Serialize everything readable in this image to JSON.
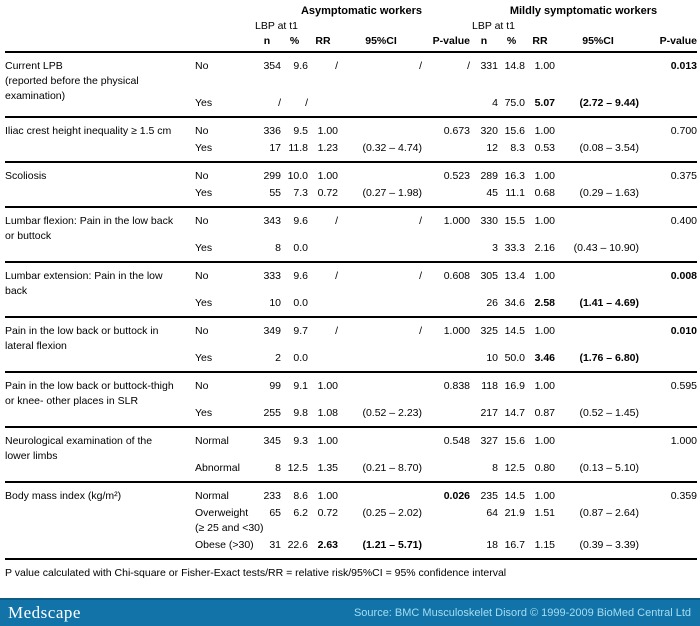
{
  "header": {
    "groups": [
      {
        "title": "Asymptomatic workers",
        "subtitle": "LBP at t1"
      },
      {
        "title": "Mildly symptomatic workers",
        "subtitle": "LBP at t1"
      }
    ],
    "columns": [
      "n",
      "%",
      "RR",
      "95%CI",
      "P-value"
    ]
  },
  "rows": [
    {
      "trait": "Current LPB\n(reported before the physical\nexamination)",
      "categories": [
        {
          "label": "No",
          "cells": [
            "354",
            "9.6",
            "/",
            "/",
            "/",
            "331",
            "14.8",
            "1.00",
            "",
            "0.013"
          ],
          "bold": [
            9
          ]
        },
        {
          "label": "Yes",
          "cells": [
            "/",
            "/",
            "",
            "",
            "",
            "4",
            "75.0",
            "5.07",
            "(2.72 – 9.44)",
            ""
          ],
          "bold": [
            7,
            8
          ]
        }
      ]
    },
    {
      "trait": "Iliac crest height inequality ≥ 1.5 cm",
      "categories": [
        {
          "label": "No",
          "cells": [
            "336",
            "9.5",
            "1.00",
            "",
            "0.673",
            "320",
            "15.6",
            "1.00",
            "",
            "0.700"
          ],
          "bold": []
        },
        {
          "label": "Yes",
          "cells": [
            "17",
            "11.8",
            "1.23",
            "(0.32 – 4.74)",
            "",
            "12",
            "8.3",
            "0.53",
            "(0.08 – 3.54)",
            ""
          ],
          "bold": []
        }
      ]
    },
    {
      "trait": "Scoliosis",
      "categories": [
        {
          "label": "No",
          "cells": [
            "299",
            "10.0",
            "1.00",
            "",
            "0.523",
            "289",
            "16.3",
            "1.00",
            "",
            "0.375"
          ],
          "bold": []
        },
        {
          "label": "Yes",
          "cells": [
            "55",
            "7.3",
            "0.72",
            "(0.27 – 1.98)",
            "",
            "45",
            "11.1",
            "0.68",
            "(0.29 – 1.63)",
            ""
          ],
          "bold": []
        }
      ]
    },
    {
      "trait": "Lumbar flexion: Pain in the low back\nor buttock",
      "categories": [
        {
          "label": "No",
          "cells": [
            "343",
            "9.6",
            "/",
            "/",
            "1.000",
            "330",
            "15.5",
            "1.00",
            "",
            "0.400"
          ],
          "bold": []
        },
        {
          "label": "Yes",
          "cells": [
            "8",
            "0.0",
            "",
            "",
            "",
            "3",
            "33.3",
            "2.16",
            "(0.43 – 10.90)",
            ""
          ],
          "bold": []
        }
      ]
    },
    {
      "trait": "Lumbar extension: Pain in the low\nback",
      "categories": [
        {
          "label": "No",
          "cells": [
            "333",
            "9.6",
            "/",
            "/",
            "0.608",
            "305",
            "13.4",
            "1.00",
            "",
            "0.008"
          ],
          "bold": [
            9
          ]
        },
        {
          "label": "Yes",
          "cells": [
            "10",
            "0.0",
            "",
            "",
            "",
            "26",
            "34.6",
            "2.58",
            "(1.41 – 4.69)",
            ""
          ],
          "bold": [
            7,
            8
          ]
        }
      ]
    },
    {
      "trait": "Pain in the low back or buttock in\nlateral flexion",
      "categories": [
        {
          "label": "No",
          "cells": [
            "349",
            "9.7",
            "/",
            "/",
            "1.000",
            "325",
            "14.5",
            "1.00",
            "",
            "0.010"
          ],
          "bold": [
            9
          ]
        },
        {
          "label": "Yes",
          "cells": [
            "2",
            "0.0",
            "",
            "",
            "",
            "10",
            "50.0",
            "3.46",
            "(1.76 – 6.80)",
            ""
          ],
          "bold": [
            7,
            8
          ]
        }
      ]
    },
    {
      "trait": "Pain in the low back or buttock-thigh\nor knee- other places in SLR",
      "categories": [
        {
          "label": "No",
          "cells": [
            "99",
            "9.1",
            "1.00",
            "",
            "0.838",
            "118",
            "16.9",
            "1.00",
            "",
            "0.595"
          ],
          "bold": []
        },
        {
          "label": "Yes",
          "cells": [
            "255",
            "9.8",
            "1.08",
            "(0.52 – 2.23)",
            "",
            "217",
            "14.7",
            "0.87",
            "(0.52 – 1.45)",
            ""
          ],
          "bold": []
        }
      ]
    },
    {
      "trait": "Neurological examination of the\nlower limbs",
      "categories": [
        {
          "label": "Normal",
          "cells": [
            "345",
            "9.3",
            "1.00",
            "",
            "0.548",
            "327",
            "15.6",
            "1.00",
            "",
            "1.000"
          ],
          "bold": []
        },
        {
          "label": "Abnormal",
          "cells": [
            "8",
            "12.5",
            "1.35",
            "(0.21 – 8.70)",
            "",
            "8",
            "12.5",
            "0.80",
            "(0.13 – 5.10)",
            ""
          ],
          "bold": []
        }
      ]
    },
    {
      "trait": "Body mass index (kg/m²)",
      "categories": [
        {
          "label": "Normal",
          "cells": [
            "233",
            "8.6",
            "1.00",
            "",
            "0.026",
            "235",
            "14.5",
            "1.00",
            "",
            "0.359"
          ],
          "bold": [
            4
          ]
        },
        {
          "label": "Overweight\n(≥ 25 and <30)",
          "cells": [
            "65",
            "6.2",
            "0.72",
            "(0.25 – 2.02)",
            "",
            "64",
            "21.9",
            "1.51",
            "(0.87 – 2.64)",
            ""
          ],
          "bold": []
        },
        {
          "label": "Obese (>30)",
          "cells": [
            "31",
            "22.6",
            "2.63",
            "(1.21 – 5.71)",
            "",
            "18",
            "16.7",
            "1.15",
            "(0.39 – 3.39)",
            ""
          ],
          "bold": [
            2,
            3
          ]
        }
      ]
    }
  ],
  "footnote": "P value calculated with Chi-square or Fisher-Exact tests/RR = relative risk/95%CI = 95% confidence interval",
  "footer": {
    "logo": "Medscape",
    "source": "Source: BMC Musculoskelet Disord © 1999-2009 BioMed Central Ltd",
    "bar_color": "#1173a8",
    "source_color": "#a5ddf2"
  }
}
